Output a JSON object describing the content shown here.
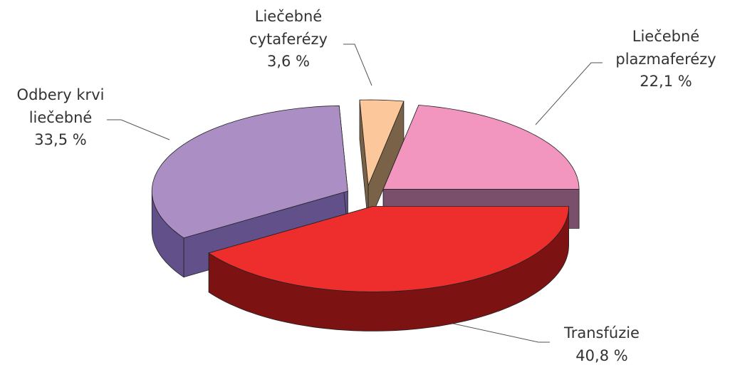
{
  "chart_data": {
    "type": "pie3d",
    "categories": [
      "Transfúzie",
      "Odbery krvi liečebné",
      "Liečebné cytaferézy",
      "Liečebné plazmaferézy"
    ],
    "values": [
      40.8,
      33.5,
      3.6,
      22.1
    ],
    "value_labels": [
      "40,8 %",
      "33,5 %",
      "3,6 %",
      "22,1 %"
    ],
    "colors": [
      "#ee2e2c",
      "#ab8fc4",
      "#fbc79b",
      "#f296c0"
    ],
    "side_colors": [
      "#7d1212",
      "#62508a",
      "#7a6248",
      "#7a4f6b"
    ]
  }
}
